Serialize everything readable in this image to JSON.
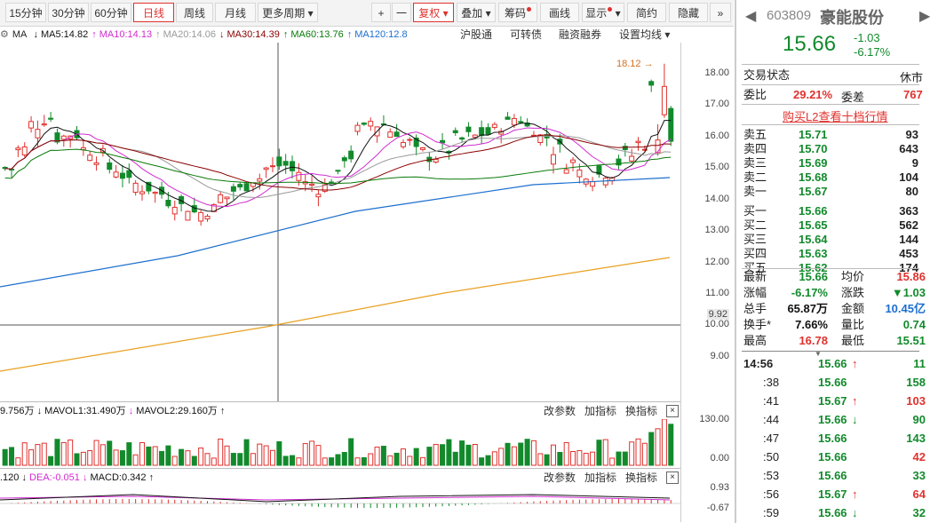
{
  "toolbar": {
    "periods": [
      "15分钟",
      "30分钟",
      "60分钟",
      "日线",
      "周线",
      "月线",
      "更多周期"
    ],
    "active_period": "日线",
    "plus": "+",
    "minus": "一",
    "fuquan": "复权",
    "tools": [
      "叠加",
      "筹码",
      "画线",
      "显示",
      "简约",
      "隐藏"
    ],
    "more": "»"
  },
  "ma_line": {
    "ma_label": "MA",
    "items": [
      {
        "text": "MA5:14.82",
        "color": "#111111"
      },
      {
        "text": "MA10:14.13",
        "color": "#d12bd1"
      },
      {
        "text": "MA20:14.06",
        "color": "#999999"
      },
      {
        "text": "MA30:14.39",
        "color": "#8b0000"
      },
      {
        "text": "MA60:13.76",
        "color": "#0a7a0a"
      },
      {
        "text": "MA120:12.8",
        "color": "#1c6fcf"
      }
    ],
    "links": [
      "沪股通",
      "可转债",
      "融资融券",
      "设置均线"
    ]
  },
  "price_axis": [
    "18.00",
    "17.00",
    "16.00",
    "15.00",
    "14.00",
    "13.00",
    "12.00",
    "11.00",
    "10.00",
    "9.00"
  ],
  "cursor_price": "9.92",
  "high_marker": "18.12",
  "vol": {
    "head": "9.756万",
    "mavol1": "MAVOL1:31.490万",
    "mavol2": "MAVOL2:29.160万",
    "axis": [
      "130.00",
      "0.00"
    ]
  },
  "macd": {
    "head": ".120",
    "dea": "DEA:-0.051",
    "macd": "MACD:0.342",
    "axis": [
      "0.93",
      "-0.67"
    ]
  },
  "sub_buttons": [
    "改参数",
    "加指标",
    "换指标"
  ],
  "close_x": "×",
  "quote": {
    "code": "603809",
    "name": "豪能股份",
    "price": "15.66",
    "change": "-1.03",
    "pct": "-6.17%",
    "status_label": "交易状态",
    "status": "休市",
    "weibi_label": "委比",
    "weibi": "29.21%",
    "weicha_label": "委差",
    "weicha": "767",
    "l2_link": "购买L2查看十档行情",
    "asks": [
      {
        "label": "卖五",
        "price": "15.71",
        "vol": "93"
      },
      {
        "label": "卖四",
        "price": "15.70",
        "vol": "643"
      },
      {
        "label": "卖三",
        "price": "15.69",
        "vol": "9"
      },
      {
        "label": "卖二",
        "price": "15.68",
        "vol": "104"
      },
      {
        "label": "卖一",
        "price": "15.67",
        "vol": "80"
      }
    ],
    "bids": [
      {
        "label": "买一",
        "price": "15.66",
        "vol": "363"
      },
      {
        "label": "买二",
        "price": "15.65",
        "vol": "562"
      },
      {
        "label": "买三",
        "price": "15.64",
        "vol": "144"
      },
      {
        "label": "买四",
        "price": "15.63",
        "vol": "453"
      },
      {
        "label": "买五",
        "price": "15.62",
        "vol": "174"
      }
    ],
    "stats": [
      {
        "l1": "最新",
        "v1": "15.66",
        "c1": "green",
        "l2": "均价",
        "v2": "15.86",
        "c2": "red"
      },
      {
        "l1": "涨幅",
        "v1": "-6.17%",
        "c1": "green",
        "l2": "涨跌",
        "v2": "▼1.03",
        "c2": "green"
      },
      {
        "l1": "总手",
        "v1": "65.87万",
        "c1": "black",
        "l2": "金额",
        "v2": "10.45亿",
        "c2": "blue"
      },
      {
        "l1": "换手*",
        "v1": "7.66%",
        "c1": "black",
        "l2": "量比",
        "v2": "0.74",
        "c2": "green"
      },
      {
        "l1": "最高",
        "v1": "16.78",
        "c1": "red",
        "l2": "最低",
        "v2": "15.51",
        "c2": "green"
      }
    ],
    "ticks": [
      {
        "t": "14:56",
        "p": "15.66",
        "arrow": "↑",
        "ac": "red",
        "v": "11",
        "vc": "green"
      },
      {
        "t": ":38",
        "p": "15.66",
        "arrow": "",
        "ac": "",
        "v": "158",
        "vc": "green"
      },
      {
        "t": ":41",
        "p": "15.67",
        "arrow": "↑",
        "ac": "red",
        "v": "103",
        "vc": "red"
      },
      {
        "t": ":44",
        "p": "15.66",
        "arrow": "↓",
        "ac": "green",
        "v": "90",
        "vc": "green"
      },
      {
        "t": ":47",
        "p": "15.66",
        "arrow": "",
        "ac": "",
        "v": "143",
        "vc": "green"
      },
      {
        "t": ":50",
        "p": "15.66",
        "arrow": "",
        "ac": "",
        "v": "42",
        "vc": "red"
      },
      {
        "t": ":53",
        "p": "15.66",
        "arrow": "",
        "ac": "",
        "v": "33",
        "vc": "green"
      },
      {
        "t": ":56",
        "p": "15.67",
        "arrow": "↑",
        "ac": "red",
        "v": "64",
        "vc": "red"
      },
      {
        "t": ":59",
        "p": "15.66",
        "arrow": "↓",
        "ac": "green",
        "v": "32",
        "vc": "green"
      }
    ]
  }
}
